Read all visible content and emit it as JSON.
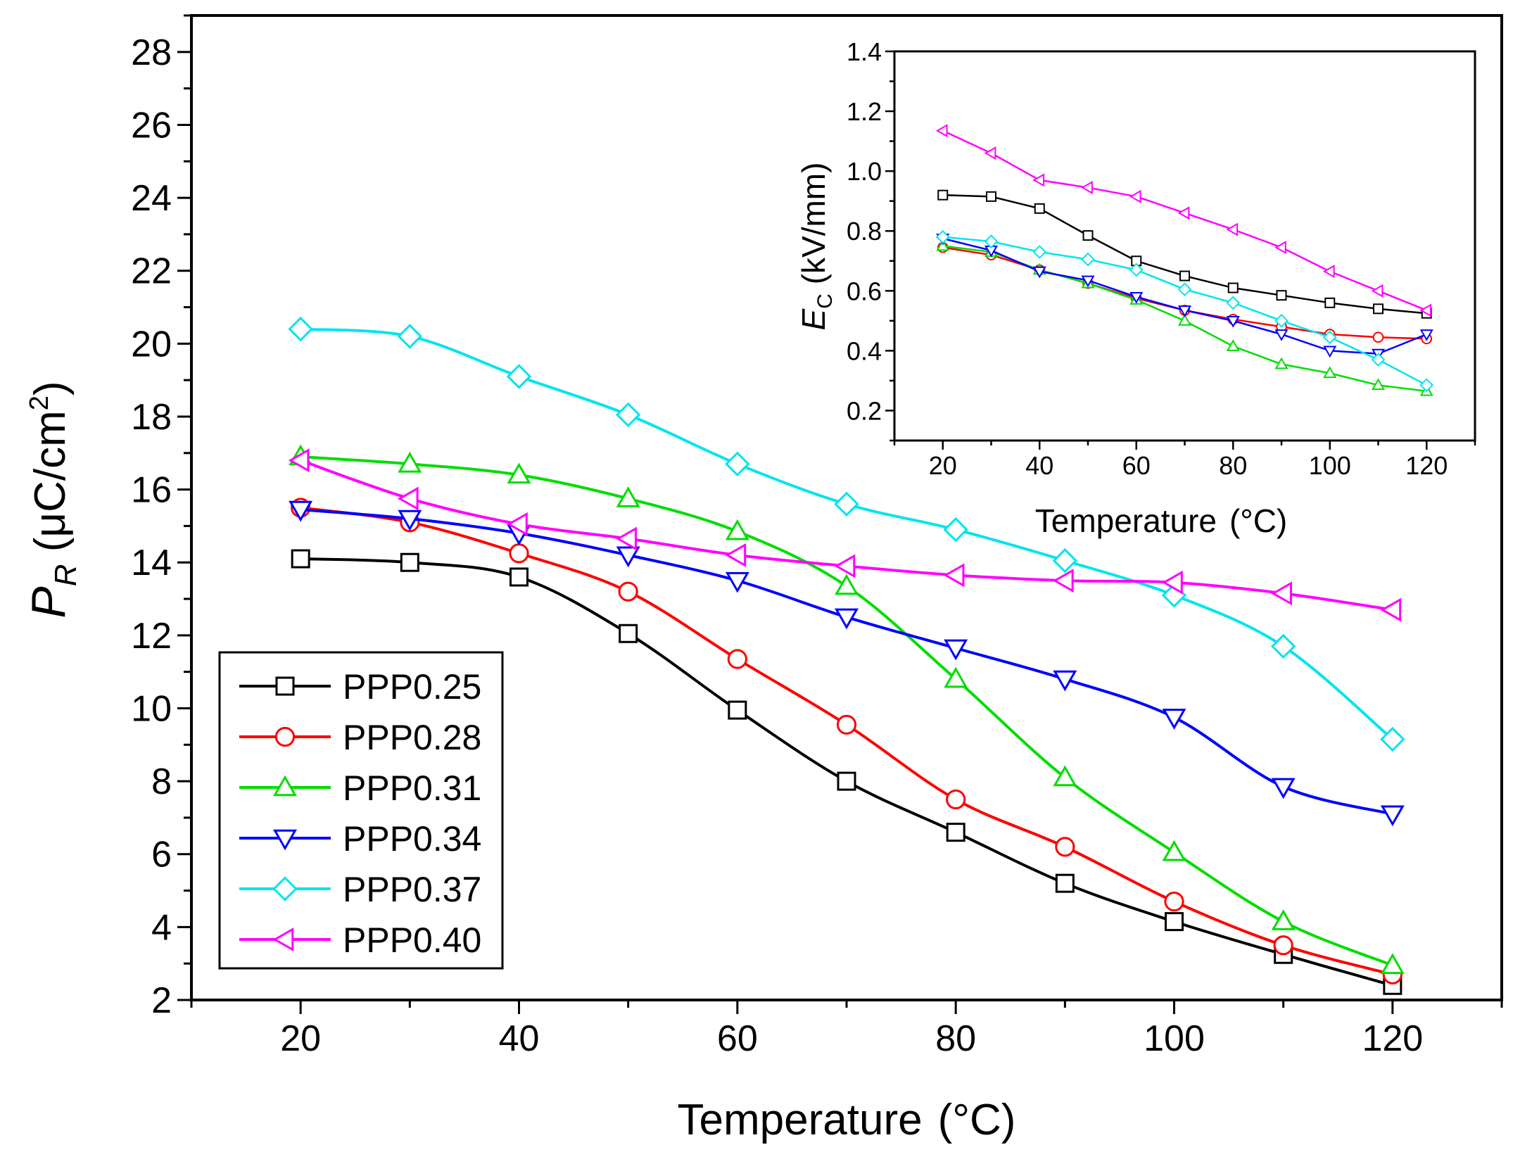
{
  "chart_data": [
    {
      "type": "line",
      "xlabel": "Temperature",
      "xlabel_unit": "(°C)",
      "ylabel_symbol": "P",
      "ylabel_subscript": "R",
      "ylabel_unit_open": " (μC/cm",
      "ylabel_unit_sup": "2",
      "ylabel_unit_close": ")",
      "xlim": [
        10,
        130
      ],
      "ylim": [
        2,
        29
      ],
      "xticks": [
        20,
        40,
        60,
        80,
        100,
        120
      ],
      "yticks": [
        2,
        4,
        6,
        8,
        10,
        12,
        14,
        16,
        18,
        20,
        22,
        24,
        26,
        28
      ],
      "x": [
        20,
        30,
        40,
        50,
        60,
        70,
        80,
        90,
        100,
        110,
        120
      ],
      "legend_position": "bottom-left",
      "series": [
        {
          "name": "PPP0.25",
          "color": "#000000",
          "marker": "square",
          "values": [
            14.1,
            14.0,
            13.6,
            12.05,
            9.95,
            8.0,
            6.6,
            5.2,
            4.15,
            3.25,
            2.4
          ]
        },
        {
          "name": "PPP0.28",
          "color": "#ff0000",
          "marker": "circle",
          "values": [
            15.5,
            15.1,
            14.25,
            13.2,
            11.35,
            9.55,
            7.5,
            6.2,
            4.7,
            3.5,
            2.7
          ]
        },
        {
          "name": "PPP0.31",
          "color": "#00dd00",
          "marker": "triangle-up",
          "values": [
            16.9,
            16.7,
            16.4,
            15.75,
            14.85,
            13.35,
            10.8,
            8.1,
            6.05,
            4.15,
            2.95
          ]
        },
        {
          "name": "PPP0.34",
          "color": "#0000ff",
          "marker": "triangle-down",
          "values": [
            15.45,
            15.2,
            14.8,
            14.2,
            13.5,
            12.5,
            11.65,
            10.8,
            9.75,
            7.85,
            7.1
          ]
        },
        {
          "name": "PPP0.37",
          "color": "#00e5ee",
          "marker": "diamond",
          "values": [
            20.4,
            20.2,
            19.1,
            18.05,
            16.7,
            15.6,
            14.9,
            14.05,
            13.1,
            11.7,
            9.15
          ]
        },
        {
          "name": "PPP0.40",
          "color": "#ff00ff",
          "marker": "triangle-left",
          "values": [
            16.8,
            15.75,
            15.05,
            14.65,
            14.2,
            13.9,
            13.65,
            13.5,
            13.45,
            13.15,
            12.7
          ]
        }
      ]
    },
    {
      "type": "line",
      "inset": true,
      "xlabel": "Temperature",
      "xlabel_unit": "(°C)",
      "ylabel_symbol": "E",
      "ylabel_subscript": "C",
      "ylabel_unit": " (kV/mm)",
      "xlim": [
        10,
        130
      ],
      "ylim": [
        0.1,
        1.4
      ],
      "xticks": [
        20,
        40,
        60,
        80,
        100,
        120
      ],
      "yticks": [
        0.2,
        0.4,
        0.6,
        0.8,
        1.0,
        1.2,
        1.4
      ],
      "ytick_labels": [
        "0.2",
        "0.4",
        "0.6",
        "0.8",
        "1.0",
        "1.2",
        "1.4"
      ],
      "x": [
        20,
        30,
        40,
        50,
        60,
        70,
        80,
        90,
        100,
        110,
        120
      ],
      "series": [
        {
          "name": "PPP0.25",
          "color": "#000000",
          "marker": "square",
          "values": [
            0.92,
            0.915,
            0.875,
            0.785,
            0.7,
            0.65,
            0.61,
            0.585,
            0.56,
            0.54,
            0.525
          ]
        },
        {
          "name": "PPP0.28",
          "color": "#ff0000",
          "marker": "circle",
          "values": [
            0.745,
            0.72,
            0.67,
            0.625,
            0.575,
            0.535,
            0.505,
            0.48,
            0.455,
            0.445,
            0.44
          ]
        },
        {
          "name": "PPP0.31",
          "color": "#00dd00",
          "marker": "triangle-up",
          "values": [
            0.75,
            0.73,
            0.67,
            0.625,
            0.57,
            0.5,
            0.415,
            0.355,
            0.325,
            0.285,
            0.265
          ]
        },
        {
          "name": "PPP0.34",
          "color": "#0000ff",
          "marker": "triangle-down",
          "values": [
            0.775,
            0.735,
            0.665,
            0.635,
            0.58,
            0.535,
            0.5,
            0.455,
            0.4,
            0.39,
            0.455
          ]
        },
        {
          "name": "PPP0.37",
          "color": "#00e5ee",
          "marker": "diamond",
          "values": [
            0.78,
            0.765,
            0.73,
            0.705,
            0.67,
            0.605,
            0.56,
            0.5,
            0.445,
            0.37,
            0.285
          ]
        },
        {
          "name": "PPP0.40",
          "color": "#ff00ff",
          "marker": "triangle-left",
          "values": [
            1.135,
            1.06,
            0.97,
            0.945,
            0.915,
            0.86,
            0.805,
            0.745,
            0.665,
            0.6,
            0.535
          ]
        }
      ]
    }
  ]
}
